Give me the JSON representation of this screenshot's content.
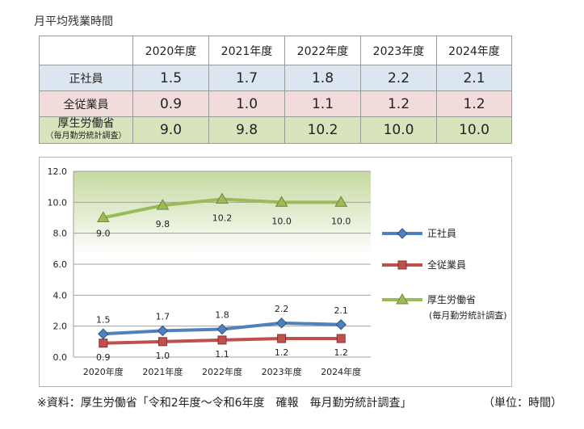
{
  "title": "月平均残業時間",
  "table": {
    "headers": [
      "2020年度",
      "2021年度",
      "2022年度",
      "2023年度",
      "2024年度"
    ],
    "rows": [
      {
        "label": "正社員",
        "sublabel": "",
        "values": [
          "1.5",
          "1.7",
          "1.8",
          "2.2",
          "2.1"
        ]
      },
      {
        "label": "全従業員",
        "sublabel": "",
        "values": [
          "0.9",
          "1.0",
          "1.1",
          "1.2",
          "1.2"
        ]
      },
      {
        "label": "厚生労働省",
        "sublabel": "（毎月勤労統計調査）",
        "values": [
          "9.0",
          "9.8",
          "10.2",
          "10.0",
          "10.0"
        ]
      }
    ]
  },
  "chart_data": {
    "type": "line",
    "categories": [
      "2020年度",
      "2021年度",
      "2022年度",
      "2023年度",
      "2024年度"
    ],
    "series": [
      {
        "name": "正社員",
        "values": [
          1.5,
          1.7,
          1.8,
          2.2,
          2.1
        ],
        "color": "#4f81bd",
        "marker": "diamond"
      },
      {
        "name": "全従業員",
        "values": [
          0.9,
          1.0,
          1.1,
          1.2,
          1.2
        ],
        "color": "#c0504d",
        "marker": "square"
      },
      {
        "name": "厚生労働省",
        "name2": "(毎月勤労統計調査)",
        "values": [
          9.0,
          9.8,
          10.2,
          10.0,
          10.0
        ],
        "color": "#9bbb59",
        "marker": "triangle"
      }
    ],
    "ylim": [
      0,
      12
    ],
    "yticks": [
      "0.0",
      "2.0",
      "4.0",
      "6.0",
      "8.0",
      "10.0",
      "12.0"
    ],
    "grid": true,
    "legend": "right",
    "data_labels": true
  },
  "footer": {
    "source": "※資料：厚生労働省「令和2年度～令和6年度　確報　毎月勤労統計調査」",
    "unit": "（単位：時間）"
  }
}
